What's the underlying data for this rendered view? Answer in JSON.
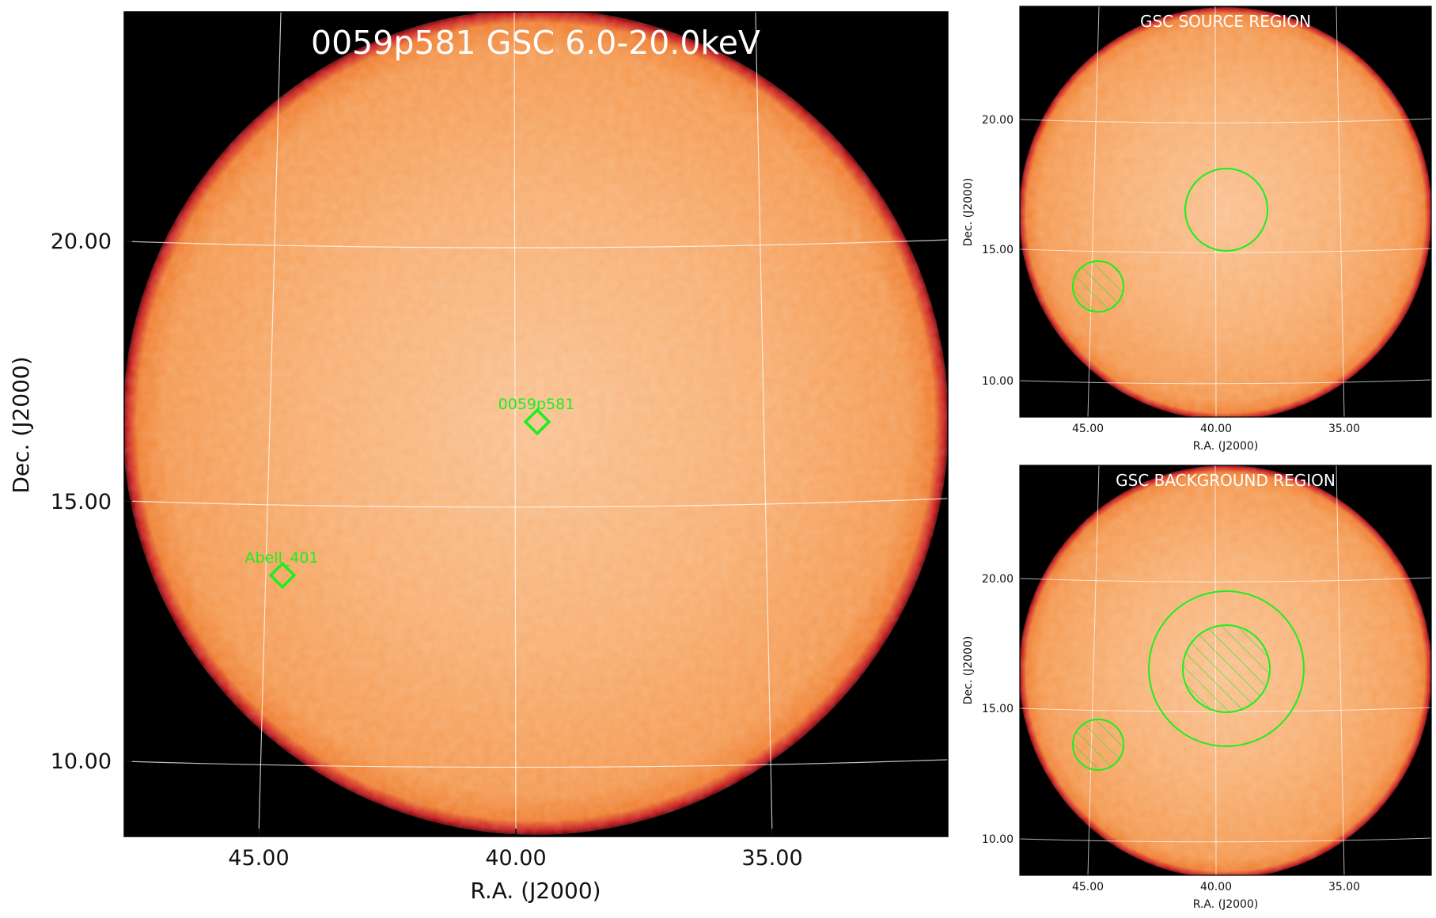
{
  "main": {
    "title": "0059p581 GSC 6.0-20.0keV",
    "xlabel": "R.A. (J2000)",
    "ylabel": "Dec. (J2000)",
    "xticks": [
      "45.00",
      "40.00",
      "35.00"
    ],
    "yticks": [
      "20.00",
      "15.00",
      "10.00"
    ],
    "markers": [
      {
        "label": "0059p581",
        "ra": 39.2,
        "dec": 16.5
      },
      {
        "label": "Abell_401",
        "ra": 44.5,
        "dec": 13.6
      }
    ]
  },
  "source_panel": {
    "title": "GSC SOURCE REGION",
    "xlabel": "R.A. (J2000)",
    "ylabel": "Dec. (J2000)",
    "xticks": [
      "45.00",
      "40.00",
      "35.00"
    ],
    "yticks": [
      "20.00",
      "15.00",
      "10.00"
    ]
  },
  "background_panel": {
    "title": "GSC BACKGROUND REGION",
    "xlabel": "R.A. (J2000)",
    "ylabel": "Dec. (J2000)",
    "xticks": [
      "45.00",
      "40.00",
      "35.00"
    ],
    "yticks": [
      "20.00",
      "15.00",
      "10.00"
    ]
  },
  "colors": {
    "image_fill": "#f59a52",
    "image_center": "#f9c08f",
    "image_rim": "#c6161a",
    "region_green": "#19f01e",
    "grid": "#ffffff",
    "background": "#000000"
  }
}
